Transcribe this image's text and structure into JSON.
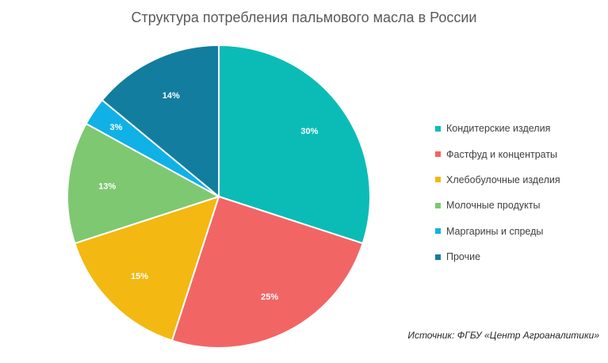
{
  "chart_data": {
    "type": "pie",
    "title": "Структура потребления пальмового масла в России",
    "categories": [
      "Кондитерские  изделия",
      "Фастфуд  и концентраты",
      "Хлебобулочные изделия",
      "Молочные продукты",
      "Маргарины и спреды",
      "Прочие"
    ],
    "values": [
      30,
      25,
      15,
      13,
      3,
      14
    ],
    "data_labels": [
      "30%",
      "25%",
      "15%",
      "13%",
      "3%",
      "14%"
    ],
    "colors": [
      "#0bbcb6",
      "#f26565",
      "#f3b811",
      "#7ec872",
      "#10b1e6",
      "#137d9f"
    ],
    "legend_position": "right",
    "source": "Источник:  ФГБУ «Центр Агроаналитики»"
  }
}
